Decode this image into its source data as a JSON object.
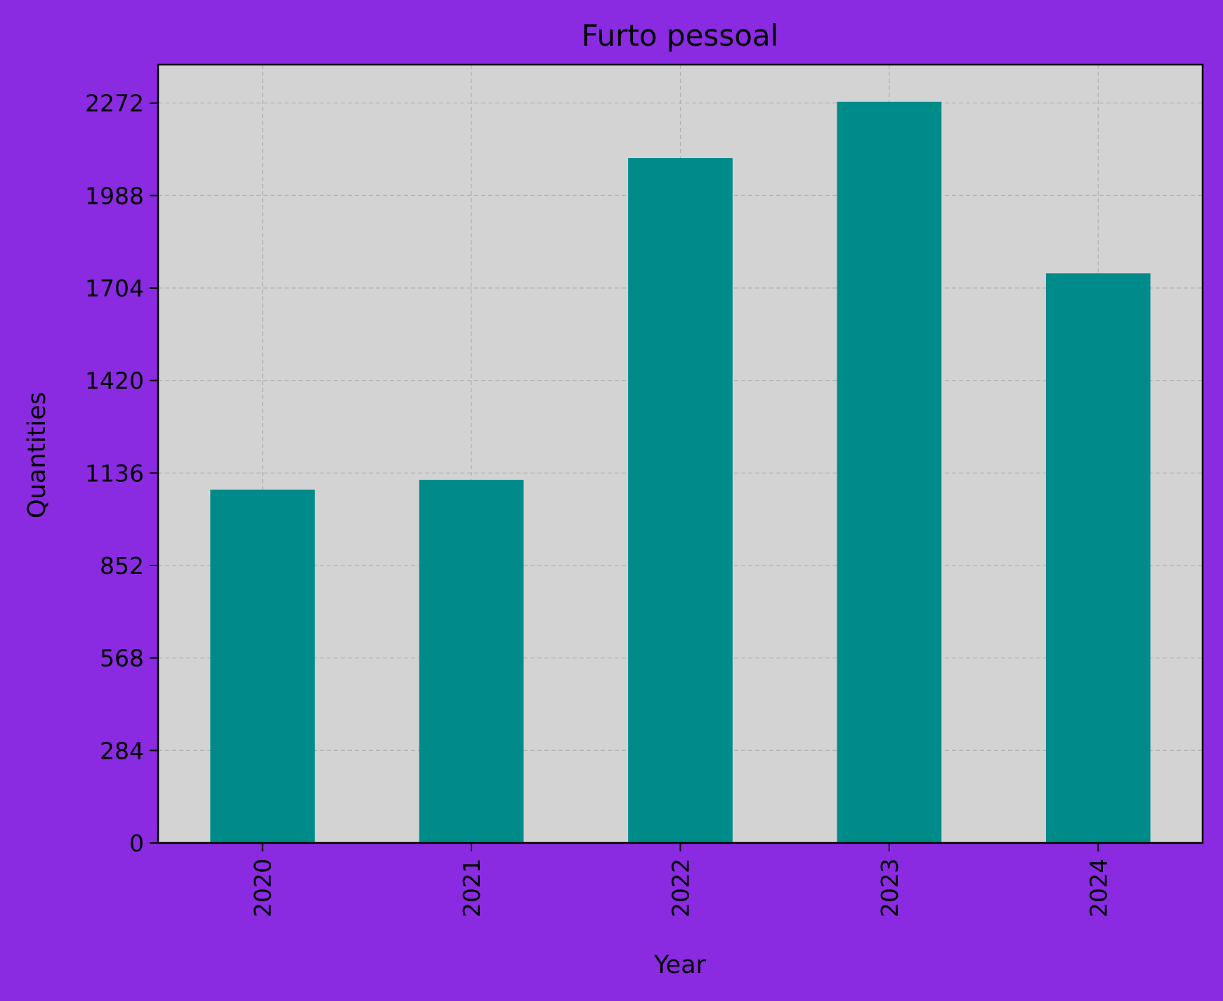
{
  "chart_data": {
    "type": "bar",
    "title": "Furto pessoal",
    "xlabel": "Year",
    "ylabel": "Quantities",
    "categories": [
      "2020",
      "2021",
      "2022",
      "2023",
      "2024"
    ],
    "values": [
      1085,
      1115,
      2103,
      2276,
      1749
    ],
    "ylim": [
      0,
      2390
    ],
    "yticks": [
      0,
      284,
      568,
      852,
      1136,
      1420,
      1704,
      1988,
      2272
    ],
    "grid": true,
    "x_tick_rotation": "vertical",
    "colors": {
      "figure_background": "#8a2be2",
      "plot_background": "#d3d3d3",
      "bar": "#008b8b",
      "grid": "#b0b0b0",
      "text": "#000000"
    }
  }
}
